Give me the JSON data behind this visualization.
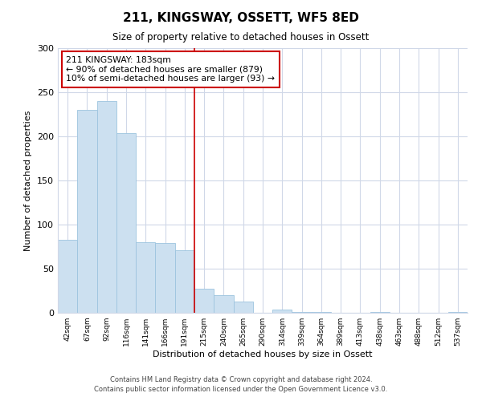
{
  "title": "211, KINGSWAY, OSSETT, WF5 8ED",
  "subtitle": "Size of property relative to detached houses in Ossett",
  "xlabel": "Distribution of detached houses by size in Ossett",
  "ylabel": "Number of detached properties",
  "bar_labels": [
    "42sqm",
    "67sqm",
    "92sqm",
    "116sqm",
    "141sqm",
    "166sqm",
    "191sqm",
    "215sqm",
    "240sqm",
    "265sqm",
    "290sqm",
    "314sqm",
    "339sqm",
    "364sqm",
    "389sqm",
    "413sqm",
    "438sqm",
    "463sqm",
    "488sqm",
    "512sqm",
    "537sqm"
  ],
  "bar_values": [
    83,
    230,
    240,
    204,
    80,
    79,
    71,
    27,
    20,
    13,
    0,
    4,
    1,
    1,
    0,
    0,
    1,
    0,
    0,
    0,
    1
  ],
  "bar_color": "#cce0f0",
  "bar_edge_color": "#9dc4df",
  "vline_x": 6.5,
  "vline_color": "#cc0000",
  "annotation_title": "211 KINGSWAY: 183sqm",
  "annotation_line1": "← 90% of detached houses are smaller (879)",
  "annotation_line2": "10% of semi-detached houses are larger (93) →",
  "annotation_box_color": "#ffffff",
  "annotation_box_edge": "#cc0000",
  "ylim": [
    0,
    300
  ],
  "yticks": [
    0,
    50,
    100,
    150,
    200,
    250,
    300
  ],
  "footnote1": "Contains HM Land Registry data © Crown copyright and database right 2024.",
  "footnote2": "Contains public sector information licensed under the Open Government Licence v3.0.",
  "bg_color": "#ffffff",
  "grid_color": "#d0d8e8"
}
